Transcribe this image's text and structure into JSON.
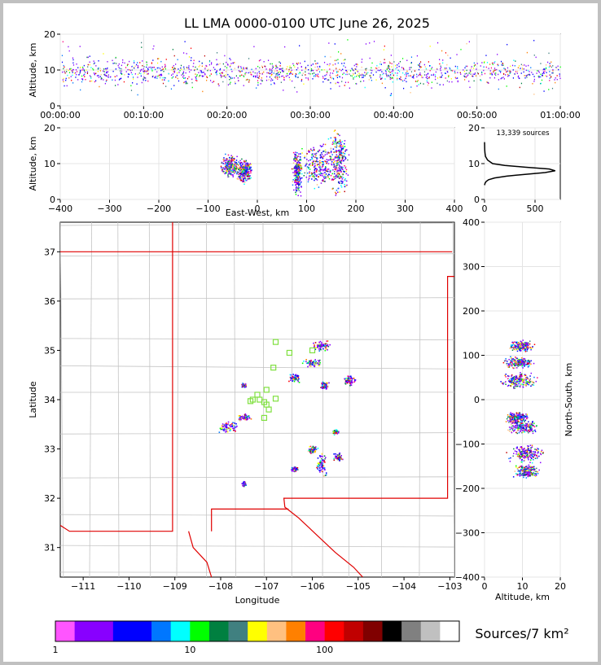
{
  "title": "LL LMA 0000-0100 UTC June 26, 2025",
  "source_count": "13,339 sources",
  "colorbar": {
    "label": "Sources/7 km²",
    "tick_labels": [
      "1",
      "10",
      "100"
    ],
    "colors": [
      "#ff55ff",
      "#8800ff",
      "#8800ff",
      "#0000ff",
      "#0000ff",
      "#0077ff",
      "#00ffff",
      "#00ff00",
      "#008040",
      "#408080",
      "#ffff00",
      "#ffc080",
      "#ff8000",
      "#ff0080",
      "#ff0000",
      "#c00000",
      "#800000",
      "#000000",
      "#808080",
      "#c0c0c0",
      "#ffffff"
    ]
  },
  "chart_data": [
    {
      "id": "time-height",
      "type": "scatter",
      "xlabel": "",
      "ylabel": "Altitude, km",
      "xlim": [
        0,
        60
      ],
      "ylim": [
        0,
        20
      ],
      "x_tick_labels": [
        "00:00:00",
        "00:10:00",
        "00:20:00",
        "00:30:00",
        "00:40:00",
        "00:50:00",
        "01:00:00"
      ],
      "y_tick_labels": [
        "0",
        "10",
        "20"
      ],
      "clusters": [
        {
          "x_min": 0,
          "x_max": 60,
          "y_mean": 9.5,
          "y_spread": 2.5
        }
      ]
    },
    {
      "id": "east-west-height",
      "type": "scatter",
      "xlabel": "East-West, km",
      "ylabel": "Altitude, km",
      "xlim": [
        -400,
        400
      ],
      "ylim": [
        0,
        20
      ],
      "x_tick_labels": [
        "−400",
        "−300",
        "−200",
        "−100",
        "0",
        "100",
        "200",
        "300",
        "400"
      ],
      "y_tick_labels": [
        "0",
        "10",
        "20"
      ],
      "clusters": [
        {
          "x": -55,
          "y": 9.5,
          "dx": 12,
          "dy": 2
        },
        {
          "x": -27,
          "y": 8,
          "dx": 10,
          "dy": 2
        },
        {
          "x": 80,
          "y": 8,
          "dx": 6,
          "dy": 4
        },
        {
          "x": 125,
          "y": 9.5,
          "dx": 25,
          "dy": 4
        },
        {
          "x": 165,
          "y": 11,
          "dx": 12,
          "dy": 6
        }
      ]
    },
    {
      "id": "altitude-histogram",
      "type": "line",
      "xlabel": "",
      "ylabel": "",
      "xlim": [
        0,
        750
      ],
      "ylim": [
        0,
        20
      ],
      "x_tick_labels": [
        "0",
        "500"
      ],
      "y_tick_labels": [
        "0",
        "10",
        "20"
      ],
      "x": [
        0,
        5,
        15,
        40,
        100,
        220,
        400,
        600,
        700,
        640,
        400,
        200,
        80,
        30,
        10,
        4,
        2,
        0
      ],
      "y": [
        4.0,
        4.5,
        5.0,
        5.5,
        6.0,
        6.5,
        7.0,
        7.5,
        8.0,
        8.5,
        9.0,
        9.5,
        10.0,
        11.0,
        12.0,
        13.0,
        14.0,
        16.0
      ]
    },
    {
      "id": "plan-view-map",
      "type": "scatter",
      "xlabel": "Longitude",
      "ylabel": "Latitude",
      "xlim": [
        -111.5,
        -102.9
      ],
      "ylim": [
        30.4,
        37.6
      ],
      "x_tick_labels": [
        "−111",
        "−110",
        "−109",
        "−108",
        "−107",
        "−106",
        "−105",
        "−104",
        "−103"
      ],
      "y_tick_labels": [
        "31",
        "32",
        "33",
        "34",
        "35",
        "36",
        "37"
      ],
      "clusters": [
        {
          "lon": -107.85,
          "lat": 33.45,
          "dx": 0.15,
          "dy": 0.08
        },
        {
          "lon": -107.5,
          "lat": 33.65,
          "dx": 0.1,
          "dy": 0.04
        },
        {
          "lon": -107.5,
          "lat": 34.3,
          "dx": 0.03,
          "dy": 0.03
        },
        {
          "lon": -106.4,
          "lat": 34.45,
          "dx": 0.08,
          "dy": 0.05
        },
        {
          "lon": -106.0,
          "lat": 34.75,
          "dx": 0.12,
          "dy": 0.05
        },
        {
          "lon": -105.8,
          "lat": 35.1,
          "dx": 0.15,
          "dy": 0.06
        },
        {
          "lon": -105.75,
          "lat": 34.3,
          "dx": 0.06,
          "dy": 0.05
        },
        {
          "lon": -105.2,
          "lat": 34.4,
          "dx": 0.08,
          "dy": 0.06
        },
        {
          "lon": -105.5,
          "lat": 33.35,
          "dx": 0.05,
          "dy": 0.03
        },
        {
          "lon": -106.0,
          "lat": 33.0,
          "dx": 0.07,
          "dy": 0.05
        },
        {
          "lon": -105.8,
          "lat": 32.7,
          "dx": 0.08,
          "dy": 0.15
        },
        {
          "lon": -105.45,
          "lat": 32.85,
          "dx": 0.06,
          "dy": 0.05
        },
        {
          "lon": -106.4,
          "lat": 32.6,
          "dx": 0.05,
          "dy": 0.03
        },
        {
          "lon": -107.5,
          "lat": 32.3,
          "dx": 0.03,
          "dy": 0.03
        }
      ],
      "stations": [
        {
          "lon": -106.8,
          "lat": 35.17
        },
        {
          "lon": -106.5,
          "lat": 34.95
        },
        {
          "lon": -106.0,
          "lat": 35.0
        },
        {
          "lon": -106.85,
          "lat": 34.65
        },
        {
          "lon": -107.0,
          "lat": 34.2
        },
        {
          "lon": -107.2,
          "lat": 34.1
        },
        {
          "lon": -107.3,
          "lat": 34.0
        },
        {
          "lon": -107.15,
          "lat": 34.0
        },
        {
          "lon": -107.05,
          "lat": 33.95
        },
        {
          "lon": -106.8,
          "lat": 34.02
        },
        {
          "lon": -106.95,
          "lat": 33.8
        },
        {
          "lon": -107.05,
          "lat": 33.63
        },
        {
          "lon": -107.0,
          "lat": 33.9
        },
        {
          "lon": -107.35,
          "lat": 33.97
        }
      ]
    },
    {
      "id": "north-south-height",
      "type": "scatter",
      "xlabel": "Altitude, km",
      "ylabel": "North-South, km",
      "xlim": [
        0,
        20
      ],
      "ylim": [
        -400,
        400
      ],
      "x_tick_labels": [
        "0",
        "10",
        "20"
      ],
      "y_tick_labels": [
        "−400",
        "−300",
        "−200",
        "−100",
        "0",
        "100",
        "200",
        "300",
        "400"
      ],
      "clusters": [
        {
          "x": 9.5,
          "y": 122,
          "dx": 2,
          "dy": 8
        },
        {
          "x": 9,
          "y": 85,
          "dx": 2.5,
          "dy": 8
        },
        {
          "x": 9,
          "y": 45,
          "dx": 3,
          "dy": 12
        },
        {
          "x": 8.5,
          "y": -40,
          "dx": 2,
          "dy": 8
        },
        {
          "x": 10,
          "y": -60,
          "dx": 2.5,
          "dy": 10
        },
        {
          "x": 11,
          "y": -120,
          "dx": 3,
          "dy": 12
        },
        {
          "x": 11,
          "y": -160,
          "dx": 2,
          "dy": 10
        }
      ]
    }
  ]
}
